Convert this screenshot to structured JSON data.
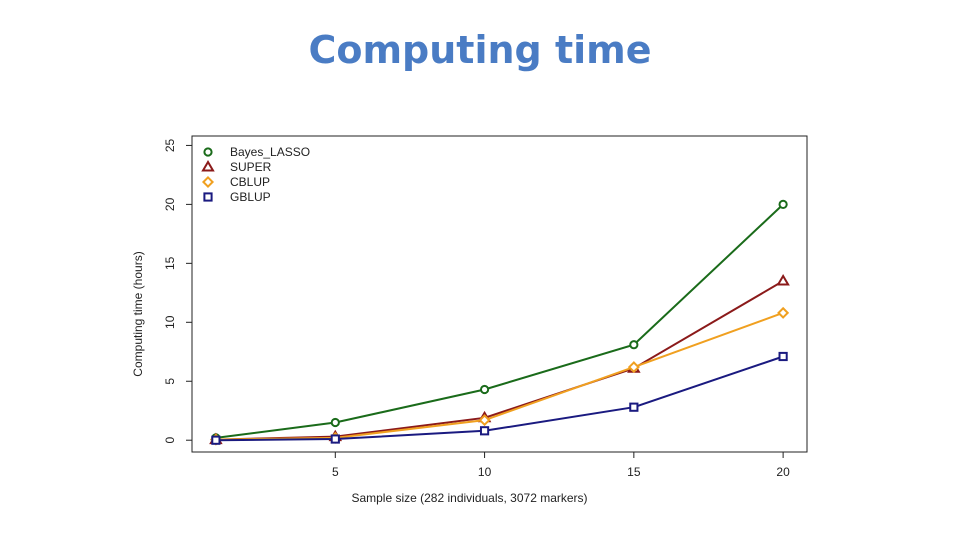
{
  "slide": {
    "title": "Computing time"
  },
  "chart_data": {
    "type": "line",
    "xlabel": "Sample size (282 individuals, 3072 markers)",
    "ylabel": "Computing time (hours)",
    "xlim": [
      1,
      20
    ],
    "ylim": [
      0,
      25
    ],
    "x_ticks": [
      5,
      10,
      15,
      20
    ],
    "y_ticks": [
      0,
      5,
      10,
      15,
      20,
      25
    ],
    "legend_position": "top-left",
    "x": [
      1,
      5,
      10,
      15,
      20
    ],
    "series": [
      {
        "name": "Bayes_LASSO",
        "color": "#1a6b1a",
        "marker": "circle",
        "values": [
          0.2,
          1.5,
          4.3,
          8.1,
          20.0
        ]
      },
      {
        "name": "SUPER",
        "color": "#8b1a1a",
        "marker": "triangle",
        "values": [
          0.05,
          0.3,
          1.9,
          6.1,
          13.5
        ]
      },
      {
        "name": "CBLUP",
        "color": "#f0a020",
        "marker": "diamond",
        "values": [
          0.05,
          0.2,
          1.7,
          6.2,
          10.8
        ]
      },
      {
        "name": "GBLUP",
        "color": "#1a1a80",
        "marker": "square",
        "values": [
          0.0,
          0.1,
          0.8,
          2.8,
          7.1
        ]
      }
    ]
  }
}
